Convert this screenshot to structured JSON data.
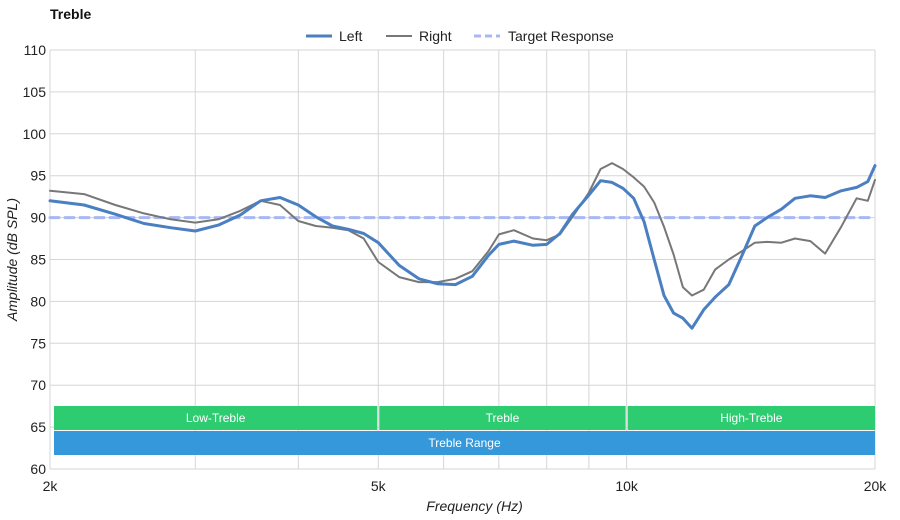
{
  "chart_data": {
    "type": "line",
    "title": "Treble",
    "xlabel": "Frequency (Hz)",
    "ylabel": "Amplitude (dB SPL)",
    "x_scale": "log",
    "xlim": [
      2000,
      20000
    ],
    "ylim": [
      60,
      110
    ],
    "x_ticks": [
      {
        "value": 2000,
        "label": "2k"
      },
      {
        "value": 5000,
        "label": "5k"
      },
      {
        "value": 10000,
        "label": "10k"
      },
      {
        "value": 20000,
        "label": "20k"
      }
    ],
    "x_gridlines": [
      2000,
      3000,
      4000,
      5000,
      6000,
      7000,
      8000,
      9000,
      10000,
      20000
    ],
    "y_ticks": [
      60,
      65,
      70,
      75,
      80,
      85,
      90,
      95,
      100,
      105,
      110
    ],
    "grid": true,
    "legend_position": "top-center",
    "series": [
      {
        "name": "Left",
        "color": "#4a7fc1",
        "style": "solid-thick",
        "x": [
          2000,
          2200,
          2400,
          2600,
          2800,
          3000,
          3200,
          3400,
          3600,
          3800,
          4000,
          4200,
          4400,
          4600,
          4800,
          5000,
          5300,
          5600,
          5900,
          6200,
          6500,
          6800,
          7000,
          7300,
          7700,
          8000,
          8300,
          8600,
          9000,
          9300,
          9600,
          9900,
          10200,
          10500,
          10800,
          11100,
          11400,
          11700,
          12000,
          12400,
          12800,
          13300,
          13800,
          14300,
          14800,
          15400,
          16000,
          16700,
          17400,
          18200,
          19000,
          19600,
          20000
        ],
        "values": [
          92.0,
          91.5,
          90.4,
          89.3,
          88.8,
          88.4,
          89.1,
          90.3,
          92.0,
          92.4,
          91.5,
          90.1,
          89.0,
          88.6,
          88.1,
          87.0,
          84.3,
          82.7,
          82.1,
          82.0,
          83.0,
          85.5,
          86.8,
          87.2,
          86.7,
          86.8,
          88.1,
          90.4,
          92.7,
          94.4,
          94.2,
          93.5,
          92.3,
          89.5,
          85.0,
          80.7,
          78.6,
          78.0,
          76.8,
          79.0,
          80.5,
          82.0,
          85.5,
          89.0,
          90.0,
          91.0,
          92.3,
          92.6,
          92.4,
          93.2,
          93.6,
          94.3,
          96.2
        ]
      },
      {
        "name": "Right",
        "color": "#777777",
        "style": "solid-thin",
        "x": [
          2000,
          2200,
          2400,
          2600,
          2800,
          3000,
          3200,
          3400,
          3600,
          3800,
          4000,
          4200,
          4400,
          4600,
          4800,
          5000,
          5300,
          5600,
          5900,
          6200,
          6500,
          6800,
          7000,
          7300,
          7700,
          8000,
          8300,
          8600,
          9000,
          9300,
          9600,
          9900,
          10200,
          10500,
          10800,
          11100,
          11400,
          11700,
          12000,
          12400,
          12800,
          13300,
          13800,
          14300,
          14800,
          15400,
          16000,
          16700,
          17400,
          18200,
          19000,
          19600,
          20000
        ],
        "values": [
          93.2,
          92.8,
          91.5,
          90.5,
          89.8,
          89.4,
          89.8,
          90.8,
          92.0,
          91.5,
          89.6,
          89.0,
          88.8,
          88.5,
          87.5,
          84.7,
          82.9,
          82.3,
          82.3,
          82.7,
          83.6,
          86.0,
          88.0,
          88.5,
          87.5,
          87.3,
          88.0,
          90.1,
          93.0,
          95.8,
          96.5,
          95.8,
          94.8,
          93.7,
          91.8,
          88.9,
          85.6,
          81.7,
          80.7,
          81.4,
          83.8,
          85.0,
          86.0,
          87.0,
          87.1,
          87.0,
          87.5,
          87.2,
          85.7,
          88.9,
          92.3,
          92.0,
          94.5
        ]
      },
      {
        "name": "Target Response",
        "color": "#a8b8f5",
        "style": "dashed",
        "x": [
          2000,
          20000
        ],
        "values": [
          90,
          90
        ]
      }
    ],
    "bands": [
      {
        "label": "Low-Treble",
        "x_start": 2000,
        "x_end": 5000,
        "row": 1,
        "color": "#2ecc71"
      },
      {
        "label": "Treble",
        "x_start": 5000,
        "x_end": 10000,
        "row": 1,
        "color": "#2ecc71"
      },
      {
        "label": "High-Treble",
        "x_start": 10000,
        "x_end": 20000,
        "row": 1,
        "color": "#2ecc71"
      },
      {
        "label": "Treble Range",
        "x_start": 2000,
        "x_end": 20000,
        "row": 2,
        "color": "#3498db"
      }
    ]
  }
}
